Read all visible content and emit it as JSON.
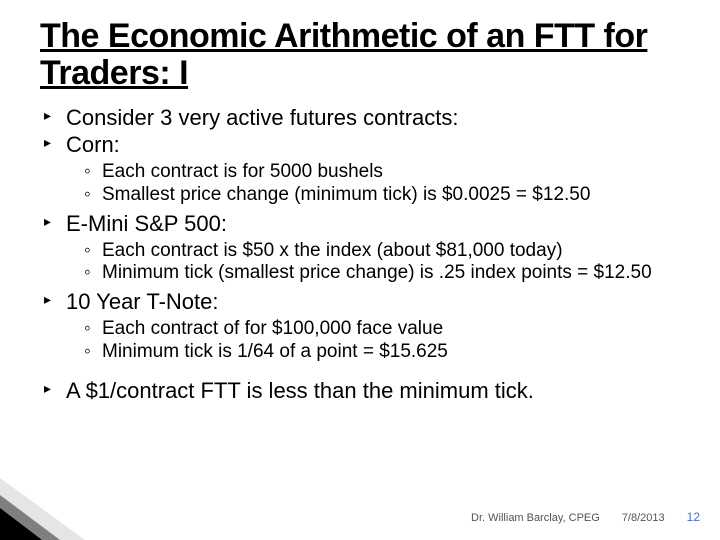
{
  "title": "The Economic Arithmetic of an FTT for Traders: I",
  "b1": "Consider 3 very active futures contracts:",
  "b2": "Corn:",
  "b2a": "Each contract is for 5000 bushels",
  "b2b": "Smallest price change (minimum tick) is $0.0025 = $12.50",
  "b3": "E-Mini S&P 500:",
  "b3a": "Each contract is $50 x the index (about $81,000 today)",
  "b3b": "Minimum tick (smallest price change) is .25 index points = $12.50",
  "b4": "10 Year T-Note:",
  "b4a": "Each contract of for $100,000 face value",
  "b4b": "Minimum tick is 1/64 of a point = $15.625",
  "b5": "A $1/contract FTT is less than the minimum tick.",
  "footer_author": "Dr. William Barclay, CPEG",
  "footer_date": "7/8/2013",
  "footer_page": "12"
}
